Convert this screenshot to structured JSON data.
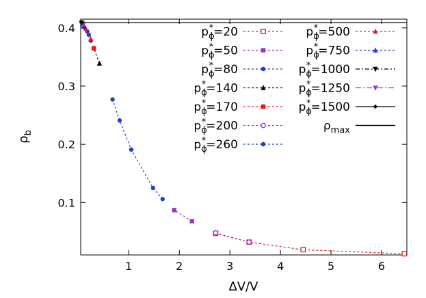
{
  "chart_data": {
    "type": "line",
    "title": "",
    "xlabel": "ΔV/V",
    "ylabel": {
      "base": "ρ",
      "sub": "b"
    },
    "xlim": [
      0.05,
      6.5
    ],
    "ylim": [
      0.01,
      0.415
    ],
    "xticks": [
      1,
      2,
      3,
      4,
      5,
      6
    ],
    "yticks": [
      0.1,
      0.2,
      0.3,
      0.4
    ],
    "grid": false,
    "legend_position": "top-right",
    "rho_max": {
      "value": 0.409,
      "label_base": "ρ",
      "label_sub": "max"
    },
    "series": [
      {
        "name": "20",
        "color": "#e41a1c",
        "marker": "square-open",
        "dash": "3,3",
        "points": [
          [
            6.45,
            0.012
          ],
          [
            4.45,
            0.019
          ],
          [
            3.38,
            0.032
          ],
          [
            2.72,
            0.047
          ]
        ]
      },
      {
        "name": "50",
        "color": "#9933cc",
        "marker": "square",
        "dash": "3,3",
        "points": [
          [
            2.25,
            0.068
          ],
          [
            1.9,
            0.087
          ]
        ]
      },
      {
        "name": "80",
        "color": "#1f3fd6",
        "marker": "circle",
        "dash": "3,3",
        "points": [
          [
            1.67,
            0.106
          ],
          [
            1.48,
            0.125
          ],
          [
            1.05,
            0.191
          ],
          [
            0.82,
            0.241
          ],
          [
            0.68,
            0.277
          ]
        ]
      },
      {
        "name": "140",
        "color": "#000000",
        "marker": "triangle",
        "dash": "3,3",
        "points": [
          [
            0.42,
            0.339
          ],
          [
            0.31,
            0.365
          ]
        ]
      },
      {
        "name": "170",
        "color": "#e41a1c",
        "marker": "square",
        "dash": "3,3",
        "points": [
          [
            0.31,
            0.365
          ]
        ]
      },
      {
        "name": "200",
        "color": "#9933cc",
        "marker": "circle-open",
        "dash": "3,3",
        "points": [
          [
            3.38,
            0.032
          ],
          [
            2.72,
            0.048
          ]
        ]
      },
      {
        "name": "260",
        "color": "#1f3fd6",
        "marker": "circle",
        "dash": "3,3",
        "points": [
          [
            0.25,
            0.378
          ],
          [
            0.21,
            0.388
          ],
          [
            0.18,
            0.394
          ]
        ]
      },
      {
        "name": "500",
        "color": "#e41a1c",
        "marker": "triangle",
        "dash": "3,3",
        "points": [
          [
            0.25,
            0.381
          ],
          [
            0.15,
            0.399
          ]
        ]
      },
      {
        "name": "750",
        "color": "#1f3fd6",
        "marker": "triangle",
        "dash": "3,3",
        "points": [
          [
            0.12,
            0.402
          ],
          [
            0.1,
            0.406
          ]
        ]
      },
      {
        "name": "1000",
        "color": "#000000",
        "marker": "triangle-down",
        "dash": "6,3,2,3",
        "points": [
          [
            0.08,
            0.407
          ],
          [
            0.07,
            0.409
          ]
        ]
      },
      {
        "name": "1250",
        "color": "#9933cc",
        "marker": "triangle-down",
        "dash": "8,3,2,3",
        "points": [
          [
            0.1,
            0.405
          ],
          [
            0.08,
            0.408
          ]
        ]
      },
      {
        "name": "1500",
        "color": "#000000",
        "marker": "diamond",
        "dash": "",
        "points": [
          [
            0.07,
            0.409
          ],
          [
            0.06,
            0.41
          ]
        ]
      }
    ],
    "legend_label_prefix": {
      "base": "p",
      "sub": "ϕ",
      "sup": "*"
    },
    "legend_label_equals": "="
  }
}
